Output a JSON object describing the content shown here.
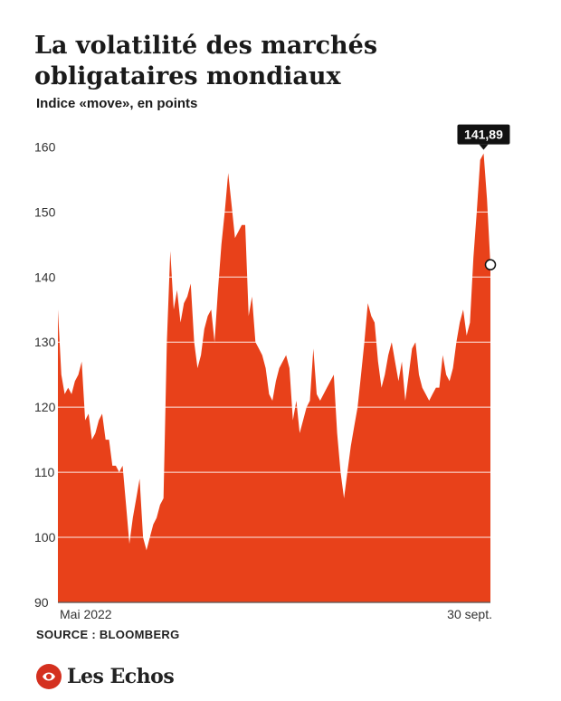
{
  "chart_data": {
    "type": "area",
    "title": "La volatilité des marchés obligataires mondiaux",
    "subtitle": "Indice «move», en points",
    "ylim": [
      90,
      162
    ],
    "yticks": [
      90,
      100,
      110,
      120,
      130,
      140,
      150,
      160
    ],
    "y_tick_labels": [
      "90",
      "100",
      "110",
      "120",
      "130",
      "140",
      "150",
      "160"
    ],
    "x_labels": [
      "Mai 2022",
      "30 sept."
    ],
    "grid": true,
    "fill_color": "#e8411a",
    "callout": {
      "label": "141,89",
      "value": 141.89
    },
    "series": [
      {
        "values": [
          135,
          125,
          122,
          123,
          122,
          124,
          125,
          127,
          118,
          119,
          115,
          116,
          118,
          119,
          115,
          115,
          111,
          111,
          110,
          111,
          105,
          99,
          103,
          106,
          109,
          100,
          98,
          100,
          102,
          103,
          105,
          106,
          130,
          144,
          135,
          138,
          133,
          136,
          137,
          139,
          130,
          126,
          128,
          132,
          134,
          135,
          130,
          138,
          145,
          150,
          156,
          151,
          146,
          147,
          148,
          148,
          134,
          137,
          130,
          129,
          128,
          126,
          122,
          121,
          124,
          126,
          127,
          128,
          126,
          118,
          121,
          116,
          118,
          120,
          121,
          129,
          122,
          121,
          122,
          123,
          124,
          125,
          116,
          110,
          106,
          110,
          114,
          117,
          120,
          125,
          130,
          136,
          134,
          133,
          127,
          123,
          125,
          128,
          130,
          127,
          124,
          127,
          121,
          125,
          129,
          130,
          125,
          123,
          122,
          121,
          122,
          123,
          123,
          128,
          125,
          124,
          126,
          130,
          133,
          135,
          131,
          133,
          143,
          150,
          158,
          159,
          152,
          141.89
        ]
      }
    ]
  },
  "source": "SOURCE : BLOOMBERG",
  "brand": {
    "name": "Les Echos",
    "color": "#d4301f"
  }
}
